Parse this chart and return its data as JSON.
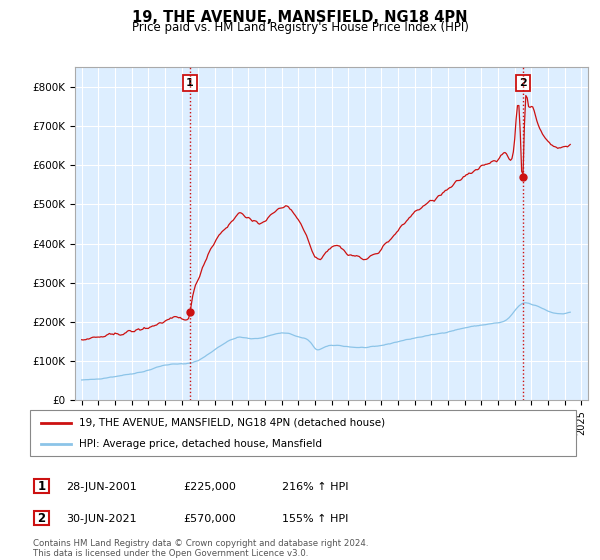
{
  "title": "19, THE AVENUE, MANSFIELD, NG18 4PN",
  "subtitle": "Price paid vs. HM Land Registry's House Price Index (HPI)",
  "ylim": [
    0,
    850000
  ],
  "yticks": [
    0,
    100000,
    200000,
    300000,
    400000,
    500000,
    600000,
    700000,
    800000
  ],
  "ytick_labels": [
    "£0",
    "£100K",
    "£200K",
    "£300K",
    "£400K",
    "£500K",
    "£600K",
    "£700K",
    "£800K"
  ],
  "xlim_min": 1994.6,
  "xlim_max": 2025.4,
  "hpi_color": "#8cc4e8",
  "price_color": "#cc1111",
  "marker_color": "#cc1111",
  "sale1_x": 2001.49,
  "sale1_y": 225000,
  "sale1_label": "1",
  "sale2_x": 2021.49,
  "sale2_y": 570000,
  "sale2_label": "2",
  "vline_color": "#cc1111",
  "background_color": "#ddeeff",
  "plot_bg_color": "#ddeeff",
  "grid_color": "#ffffff",
  "legend_entry1": "19, THE AVENUE, MANSFIELD, NG18 4PN (detached house)",
  "legend_entry2": "HPI: Average price, detached house, Mansfield",
  "table_row1": [
    "1",
    "28-JUN-2001",
    "£225,000",
    "216% ↑ HPI"
  ],
  "table_row2": [
    "2",
    "30-JUN-2021",
    "£570,000",
    "155% ↑ HPI"
  ],
  "footnote": "Contains HM Land Registry data © Crown copyright and database right 2024.\nThis data is licensed under the Open Government Licence v3.0."
}
